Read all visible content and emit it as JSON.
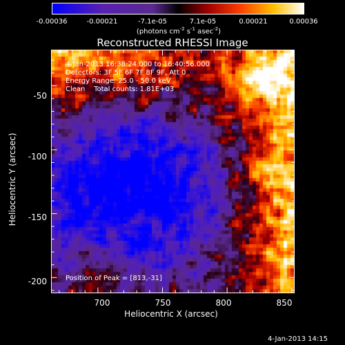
{
  "colorbar": {
    "ticks": [
      "-0.00036",
      "-0.00021",
      "-7.1e-05",
      "7.1e-05",
      "0.00021",
      "0.00036"
    ],
    "units_text": "(photons cm",
    "units_exp1": "-2",
    "units_s": " s",
    "units_exp2": "-1",
    "units_asec": " asec",
    "units_exp3": "-2",
    "units_close": ")",
    "colors": [
      "#0000ff",
      "#5a20b0",
      "#6a3098",
      "#000000",
      "#a00000",
      "#ff4000",
      "#ffc000",
      "#ffffff"
    ]
  },
  "title": "Reconstructed RHESSI Image",
  "annotations": {
    "time": "4-Jan-2013 16:38:24.000 to 16:40:56.000",
    "detectors": "Detectors: 3F 5F 6F 7F 8F 9F, Att 0",
    "energy": "Energy Range: 25.0 - 50.0 keV",
    "method": "Clean    Total counts: 1.81E+03",
    "peak": "Position of Peak = [813,-31]"
  },
  "axes": {
    "xlabel": "Heliocentric X (arcsec)",
    "ylabel": "Heliocentric Y (arcsec)",
    "xticks": [
      "700",
      "750",
      "800",
      "850"
    ],
    "yticks": [
      "-50",
      "-100",
      "-150",
      "-200"
    ],
    "xlim": [
      664,
      852
    ],
    "ylim": [
      -212,
      -22
    ]
  },
  "timestamp": "4-Jan-2013 14:15"
}
